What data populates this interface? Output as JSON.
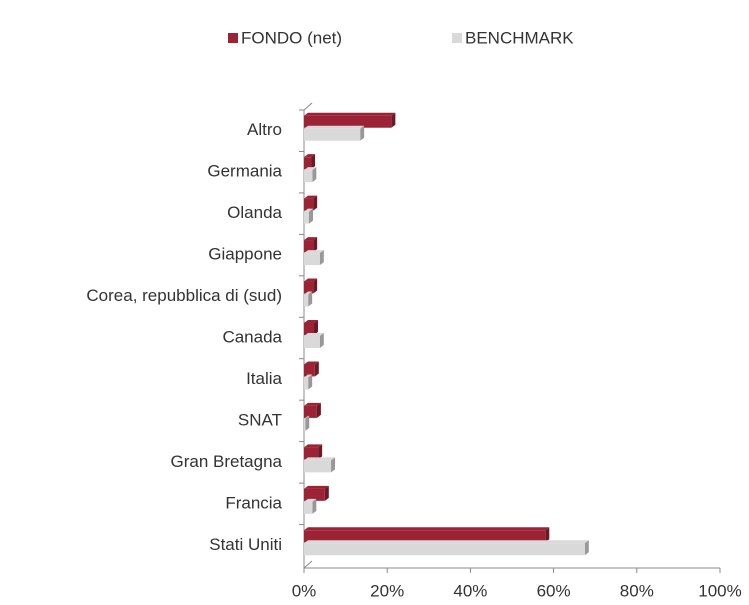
{
  "chart_data": {
    "type": "hbar",
    "categories": [
      "Altro",
      "Germania",
      "Olanda",
      "Giappone",
      "Corea, repubblica di (sud)",
      "Canada",
      "Italia",
      "SNAT",
      "Gran Bretagna",
      "Francia",
      "Stati Uniti"
    ],
    "series": [
      {
        "name": "FONDO (net)",
        "color": "#9b2335",
        "values": [
          21,
          1.7,
          2.2,
          2.2,
          2.2,
          2.4,
          2.6,
          3.1,
          3.4,
          5,
          58
        ]
      },
      {
        "name": "BENCHMARK",
        "color": "#d9d9d9",
        "values": [
          13.5,
          2,
          1.2,
          3.8,
          1,
          3.8,
          1,
          0.3,
          6.5,
          2,
          67.5
        ]
      }
    ],
    "xlim": [
      0,
      100
    ],
    "xticks": [
      {
        "value": 0,
        "label": "0%"
      },
      {
        "value": 20,
        "label": "20%"
      },
      {
        "value": 40,
        "label": "40%"
      },
      {
        "value": 60,
        "label": "60%"
      },
      {
        "value": 80,
        "label": "80%"
      },
      {
        "value": 100,
        "label": "100%"
      }
    ],
    "legend": "top"
  }
}
